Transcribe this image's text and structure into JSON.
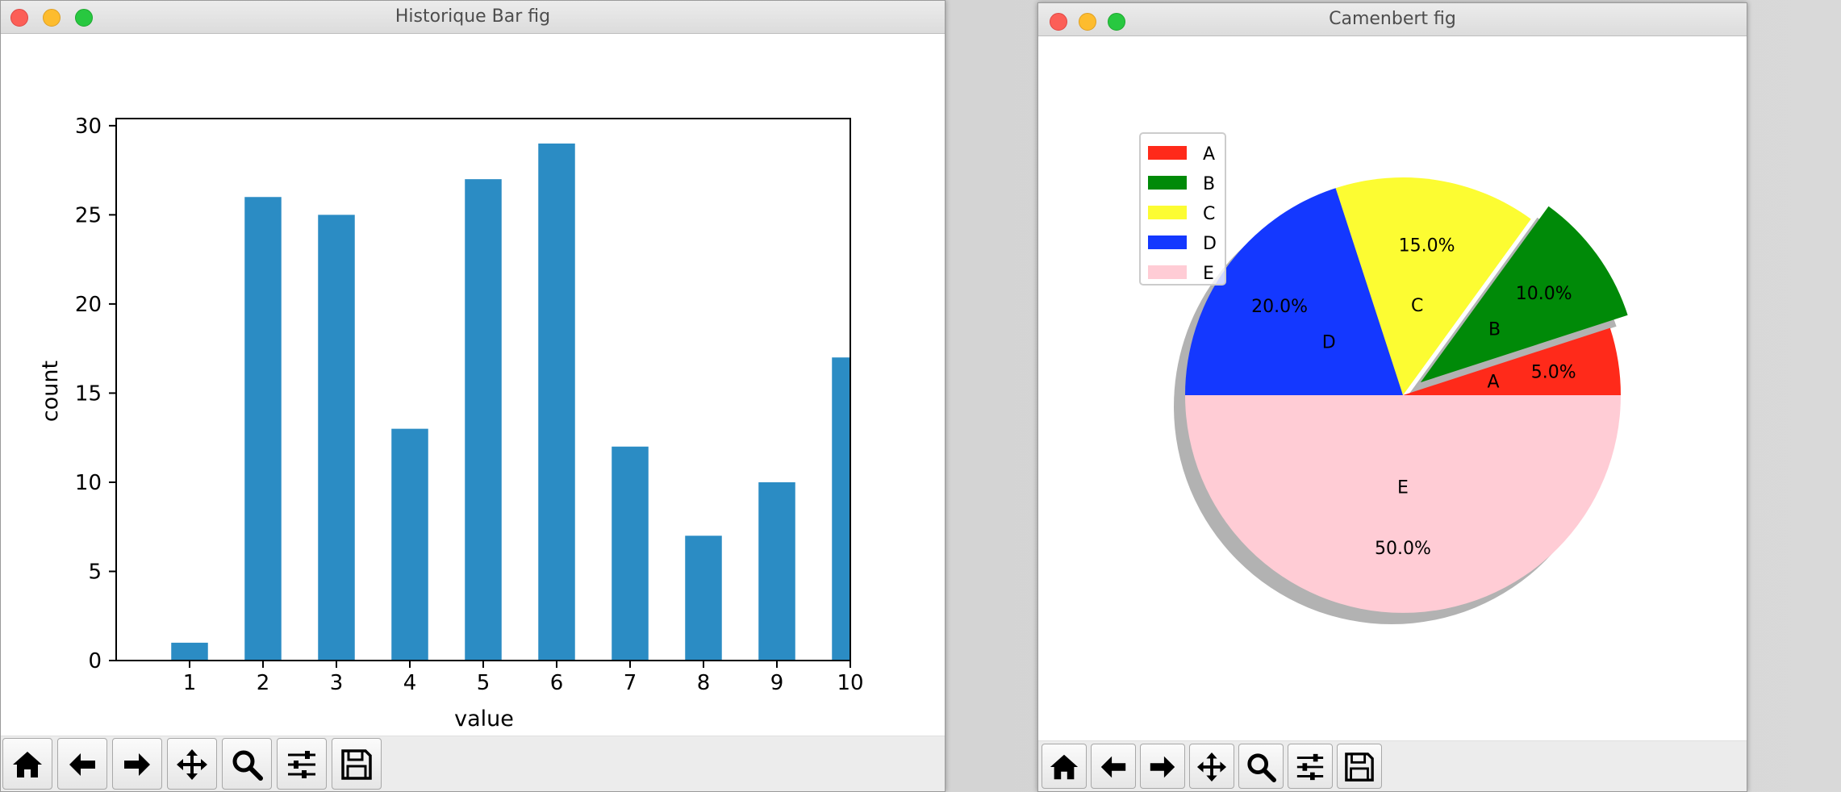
{
  "desktop": {
    "windows": [
      {
        "title": "Historique Bar fig",
        "toolbar": [
          "home-icon",
          "back-arrow-icon",
          "forward-arrow-icon",
          "move-icon",
          "zoom-icon",
          "sliders-icon",
          "save-icon"
        ]
      },
      {
        "title": "Camenbert fig",
        "toolbar": [
          "home-icon",
          "back-arrow-icon",
          "forward-arrow-icon",
          "move-icon",
          "zoom-icon",
          "sliders-icon",
          "save-icon"
        ]
      }
    ]
  },
  "chart_data": [
    {
      "type": "bar",
      "categories": [
        "1",
        "2",
        "3",
        "4",
        "5",
        "6",
        "7",
        "8",
        "9",
        "10"
      ],
      "x": [
        1,
        2,
        3,
        4,
        5,
        6,
        7,
        8,
        9,
        10
      ],
      "values": [
        1,
        26,
        25,
        13,
        27,
        29,
        12,
        7,
        10,
        17
      ],
      "xlabel": "value",
      "ylabel": "count",
      "xlim": [
        0,
        10
      ],
      "ylim": [
        0,
        30.4
      ],
      "yticks": [
        0,
        5,
        10,
        15,
        20,
        25,
        30
      ],
      "xticks": [
        "1",
        "2",
        "3",
        "4",
        "5",
        "6",
        "7",
        "8",
        "9",
        "10"
      ],
      "grid": false,
      "bar_color": "#2b8cc4"
    },
    {
      "type": "pie",
      "labels": [
        "A",
        "B",
        "C",
        "D",
        "E"
      ],
      "values": [
        5,
        10,
        15,
        20,
        50
      ],
      "autopct_labels": [
        "5.0%",
        "10.0%",
        "15.0%",
        "20.0%",
        "50.0%"
      ],
      "colors": [
        "#ff2a1a",
        "#008a08",
        "#fcfc32",
        "#1438ff",
        "#ffccd5"
      ],
      "explode": [
        0,
        0.1,
        0,
        0,
        0
      ],
      "shadow": true,
      "legend": {
        "entries": [
          "A",
          "B",
          "C",
          "D",
          "E"
        ],
        "placement": "upper-left"
      }
    }
  ]
}
